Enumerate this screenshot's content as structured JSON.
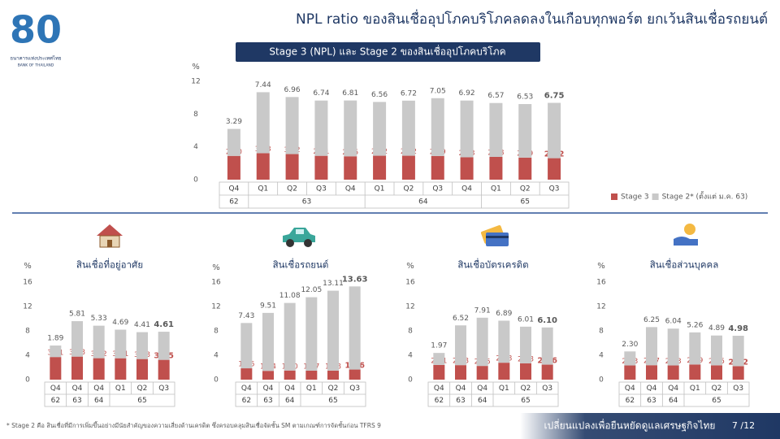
{
  "header": {
    "title": "NPL ratio ของสินเชื่ออุปโภคบริโภคลดลงในเกือบทุกพอร์ต ยกเว้นสินเชื่อรถยนต์",
    "logo_number": "80",
    "logo_text": "ธนาคารแห่งประเทศไทย",
    "logo_subtext": "BANK OF THAILAND"
  },
  "chart_data": [
    {
      "type": "bar",
      "stacked": true,
      "title": "Stage 3 (NPL) และ Stage 2 ของสินเชื่ออุปโภคบริโภค",
      "y_unit": "%",
      "ylim": [
        0,
        12
      ],
      "yticks": [
        0,
        4,
        8,
        12
      ],
      "grid": false,
      "legend": "bottom-right",
      "categories": [
        "Q4",
        "Q1",
        "Q2",
        "Q3",
        "Q4",
        "Q1",
        "Q2",
        "Q3",
        "Q4",
        "Q1",
        "Q2",
        "Q3"
      ],
      "years": [
        "62",
        "63",
        null,
        null,
        null,
        "64",
        null,
        null,
        null,
        "65",
        null,
        null
      ],
      "series": [
        {
          "name": "Stage 3",
          "color": "#c0504d",
          "values": [
            2.9,
            3.23,
            3.12,
            2.91,
            2.85,
            2.92,
            2.92,
            2.89,
            2.73,
            2.78,
            2.69,
            2.62
          ],
          "value_labels": [
            "2.90",
            "3.23",
            "3.12",
            "2.91",
            "2.85",
            "2.92",
            "2.92",
            "2.89",
            "2.73",
            "2.78",
            "2.69",
            "2.62"
          ]
        },
        {
          "name": "Stage 2* (ตั้งแต่ ม.ค. 63)",
          "color": "#c9c9c9",
          "values": [
            3.29,
            7.44,
            6.96,
            6.74,
            6.81,
            6.56,
            6.72,
            7.05,
            6.92,
            6.57,
            6.53,
            6.75
          ],
          "value_labels": [
            "3.29",
            "7.44",
            "6.96",
            "6.74",
            "6.81",
            "6.56",
            "6.72",
            "7.05",
            "6.92",
            "6.57",
            "6.53",
            "6.75"
          ]
        }
      ]
    },
    {
      "type": "bar",
      "stacked": true,
      "title": "สินเชื่อที่อยู่อาศัย",
      "y_unit": "%",
      "ylim": [
        0,
        16
      ],
      "yticks": [
        0,
        4,
        8,
        12,
        16
      ],
      "grid": false,
      "categories": [
        "Q4",
        "Q4",
        "Q4",
        "Q1",
        "Q2",
        "Q3"
      ],
      "years": [
        "62",
        "63",
        "64",
        "65",
        null,
        null
      ],
      "series": [
        {
          "color": "#c0504d",
          "values": [
            3.71,
            3.78,
            3.52,
            3.51,
            3.38,
            3.25
          ],
          "value_labels": [
            "3.71",
            "3.78",
            "3.52",
            "3.51",
            "3.38",
            "3.25"
          ]
        },
        {
          "color": "#c9c9c9",
          "values": [
            1.89,
            5.81,
            5.33,
            4.69,
            4.41,
            4.61
          ],
          "value_labels": [
            "1.89",
            "5.81",
            "5.33",
            "4.69",
            "4.41",
            "4.61"
          ]
        }
      ]
    },
    {
      "type": "bar",
      "stacked": true,
      "title": "สินเชื่อรถยนต์",
      "y_unit": "%",
      "ylim": [
        0,
        16
      ],
      "yticks": [
        0,
        4,
        8,
        12,
        16
      ],
      "grid": false,
      "categories": [
        "Q4",
        "Q4",
        "Q4",
        "Q1",
        "Q2",
        "Q3"
      ],
      "years": [
        "62",
        "63",
        "64",
        "65",
        null,
        null
      ],
      "series": [
        {
          "color": "#c0504d",
          "values": [
            1.86,
            1.44,
            1.5,
            1.47,
            1.48,
            1.66
          ],
          "value_labels": [
            "1.86",
            "1.44",
            "1.50",
            "1.47",
            "1.48",
            "1.66"
          ]
        },
        {
          "color": "#c9c9c9",
          "values": [
            7.43,
            9.51,
            11.08,
            12.05,
            13.11,
            13.63
          ],
          "value_labels": [
            "7.43",
            "9.51",
            "11.08",
            "12.05",
            "13.11",
            "13.63"
          ]
        }
      ]
    },
    {
      "type": "bar",
      "stacked": true,
      "title": "สินเชื่อบัตรเครดิต",
      "y_unit": "%",
      "ylim": [
        0,
        16
      ],
      "yticks": [
        0,
        4,
        8,
        12,
        16
      ],
      "grid": false,
      "categories": [
        "Q4",
        "Q4",
        "Q4",
        "Q1",
        "Q2",
        "Q3"
      ],
      "years": [
        "62",
        "63",
        "64",
        "65",
        null,
        null
      ],
      "series": [
        {
          "color": "#c0504d",
          "values": [
            2.41,
            2.38,
            2.25,
            2.78,
            2.68,
            2.46
          ],
          "value_labels": [
            "2.41",
            "2.38",
            "2.25",
            "2.78",
            "2.68",
            "2.46"
          ]
        },
        {
          "color": "#c9c9c9",
          "values": [
            1.97,
            6.52,
            7.91,
            6.89,
            6.01,
            6.1
          ],
          "value_labels": [
            "1.97",
            "6.52",
            "7.91",
            "6.89",
            "6.01",
            "6.10"
          ]
        }
      ]
    },
    {
      "type": "bar",
      "stacked": true,
      "title": "สินเชื่อส่วนบุคคล",
      "y_unit": "%",
      "ylim": [
        0,
        16
      ],
      "yticks": [
        0,
        4,
        8,
        12,
        16
      ],
      "grid": false,
      "categories": [
        "Q4",
        "Q4",
        "Q4",
        "Q1",
        "Q2",
        "Q3"
      ],
      "years": [
        "62",
        "63",
        "64",
        "65",
        null,
        null
      ],
      "series": [
        {
          "color": "#c0504d",
          "values": [
            2.33,
            2.37,
            2.33,
            2.49,
            2.35,
            2.22
          ],
          "value_labels": [
            "2.33",
            "2.37",
            "2.33",
            "2.49",
            "2.35",
            "2.22"
          ]
        },
        {
          "color": "#c9c9c9",
          "values": [
            2.3,
            6.25,
            6.04,
            5.26,
            4.89,
            4.98
          ],
          "value_labels": [
            "2.30",
            "6.25",
            "6.04",
            "5.26",
            "4.89",
            "4.98"
          ]
        }
      ]
    }
  ],
  "footer": {
    "note": "* Stage 2 คือ สินเชื่อที่มีการเพิ่มขึ้นอย่างมีนัยสำคัญของความเสี่ยงด้านเครดิต ซึ่งครอบคลุมสินเชื่อจัดชั้น SM ตามเกณฑ์การจัดชั้นก่อน TFRS 9",
    "slogan": "เปลี่ยนแปลงเพื่อยืนหยัดดูแลเศรษฐกิจไทย",
    "page": "7 /12"
  }
}
